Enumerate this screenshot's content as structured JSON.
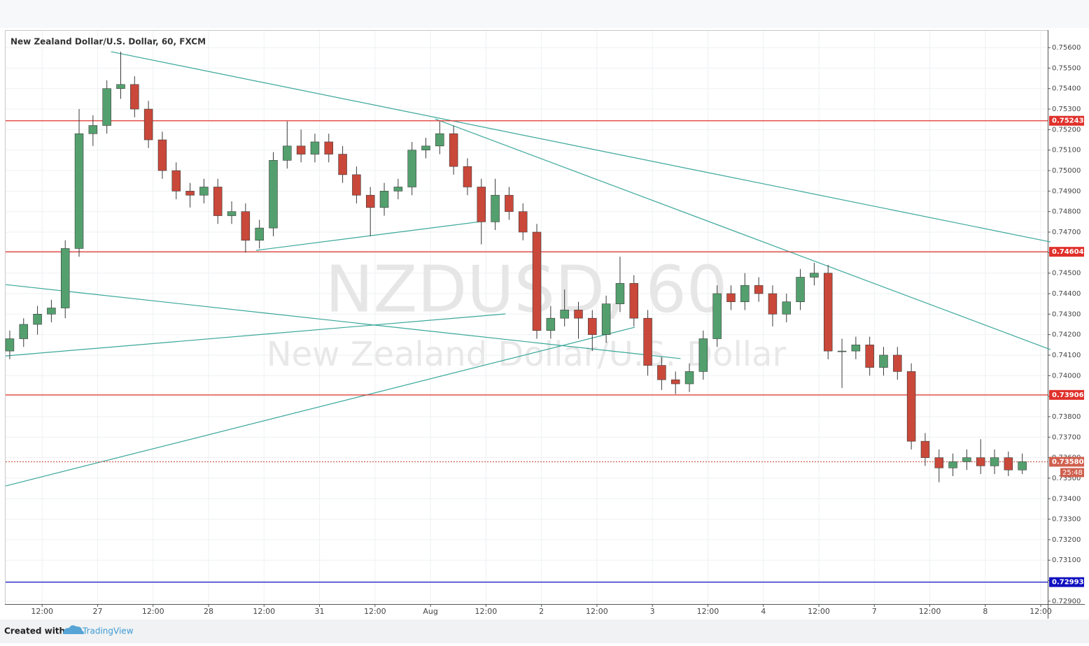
{
  "chart_data": {
    "type": "candlestick",
    "title": "New Zealand Dollar/U.S. Dollar, 60, FXCM",
    "watermark": [
      "NZDUSD, 60",
      "New Zealand Dollar/U.S. Dollar"
    ],
    "up_color": "#53a06e",
    "down_color": "#c9483a",
    "trend_color": "#3aa79a",
    "grid": true,
    "xlim": [
      -7.9,
      217.5
    ],
    "ylim": [
      0.72886,
      0.75682
    ],
    "xticks": [
      {
        "value": 0,
        "label": "12:00"
      },
      {
        "value": 12,
        "label": "27"
      },
      {
        "value": 24,
        "label": "12:00"
      },
      {
        "value": 36,
        "label": "28"
      },
      {
        "value": 48,
        "label": "12:00"
      },
      {
        "value": 60,
        "label": "31"
      },
      {
        "value": 72,
        "label": "12:00"
      },
      {
        "value": 84,
        "label": "Aug"
      },
      {
        "value": 96,
        "label": "12:00"
      },
      {
        "value": 108,
        "label": "2"
      },
      {
        "value": 120,
        "label": "12:00"
      },
      {
        "value": 132,
        "label": "3"
      },
      {
        "value": 144,
        "label": "12:00"
      },
      {
        "value": 156,
        "label": "4"
      },
      {
        "value": 168,
        "label": "12:00"
      },
      {
        "value": 180,
        "label": "7"
      },
      {
        "value": 192,
        "label": "12:00"
      },
      {
        "value": 204,
        "label": "8"
      },
      {
        "value": 216,
        "label": "12:00"
      }
    ],
    "yticks": [
      {
        "value": 0.729,
        "label": "0.72900"
      },
      {
        "value": 0.73,
        "label": "0.73000"
      },
      {
        "value": 0.731,
        "label": "0.73100"
      },
      {
        "value": 0.732,
        "label": "0.73200"
      },
      {
        "value": 0.733,
        "label": "0.73300"
      },
      {
        "value": 0.734,
        "label": "0.73400"
      },
      {
        "value": 0.735,
        "label": "0.73500"
      },
      {
        "value": 0.736,
        "label": "0.73600"
      },
      {
        "value": 0.737,
        "label": "0.73700"
      },
      {
        "value": 0.738,
        "label": "0.73800"
      },
      {
        "value": 0.739,
        "label": "0.73900"
      },
      {
        "value": 0.74,
        "label": "0.74000"
      },
      {
        "value": 0.741,
        "label": "0.74100"
      },
      {
        "value": 0.742,
        "label": "0.74200"
      },
      {
        "value": 0.743,
        "label": "0.74300"
      },
      {
        "value": 0.744,
        "label": "0.74400"
      },
      {
        "value": 0.745,
        "label": "0.74500"
      },
      {
        "value": 0.746,
        "label": "0.74600"
      },
      {
        "value": 0.747,
        "label": "0.74700"
      },
      {
        "value": 0.748,
        "label": "0.74800"
      },
      {
        "value": 0.749,
        "label": "0.74900"
      },
      {
        "value": 0.75,
        "label": "0.75000"
      },
      {
        "value": 0.751,
        "label": "0.75100"
      },
      {
        "value": 0.752,
        "label": "0.75200"
      },
      {
        "value": 0.753,
        "label": "0.75300"
      },
      {
        "value": 0.754,
        "label": "0.75400"
      },
      {
        "value": 0.755,
        "label": "0.75500"
      },
      {
        "value": 0.756,
        "label": "0.75600"
      }
    ],
    "x": [
      -7,
      -4,
      -1,
      2,
      5,
      8,
      11,
      14,
      17,
      20,
      23,
      26,
      29,
      32,
      35,
      38,
      41,
      44,
      47,
      50,
      53,
      56,
      59,
      62,
      65,
      68,
      71,
      74,
      77,
      80,
      83,
      86,
      89,
      92,
      95,
      98,
      101,
      104,
      107,
      110,
      113,
      116,
      119,
      122,
      125,
      128,
      131,
      134,
      137,
      140,
      143,
      146,
      149,
      152,
      155,
      158,
      161,
      164,
      167,
      170,
      173,
      176,
      179,
      182,
      185,
      188,
      191,
      194,
      197,
      200,
      203,
      206,
      209,
      212
    ],
    "candles": [
      [
        0.7412,
        0.7422,
        0.7408,
        0.7418
      ],
      [
        0.7418,
        0.7428,
        0.7414,
        0.7425
      ],
      [
        0.7425,
        0.7434,
        0.742,
        0.743
      ],
      [
        0.743,
        0.7437,
        0.7426,
        0.7433
      ],
      [
        0.7433,
        0.7466,
        0.7428,
        0.7462
      ],
      [
        0.7462,
        0.753,
        0.7458,
        0.7518
      ],
      [
        0.7518,
        0.7527,
        0.7512,
        0.7522
      ],
      [
        0.7522,
        0.7544,
        0.7518,
        0.754
      ],
      [
        0.754,
        0.7558,
        0.7535,
        0.7542
      ],
      [
        0.7542,
        0.7546,
        0.7526,
        0.753
      ],
      [
        0.753,
        0.7534,
        0.7511,
        0.7515
      ],
      [
        0.7515,
        0.7519,
        0.7496,
        0.75
      ],
      [
        0.75,
        0.7504,
        0.7486,
        0.749
      ],
      [
        0.749,
        0.7494,
        0.7482,
        0.7488
      ],
      [
        0.7488,
        0.7496,
        0.7484,
        0.7492
      ],
      [
        0.7492,
        0.7496,
        0.7474,
        0.7478
      ],
      [
        0.7478,
        0.7485,
        0.7474,
        0.748
      ],
      [
        0.748,
        0.7484,
        0.746,
        0.7466
      ],
      [
        0.7466,
        0.7476,
        0.7462,
        0.7472
      ],
      [
        0.7472,
        0.7509,
        0.7468,
        0.7505
      ],
      [
        0.7505,
        0.7524,
        0.7501,
        0.7512
      ],
      [
        0.7512,
        0.752,
        0.7504,
        0.7508
      ],
      [
        0.7508,
        0.7518,
        0.7504,
        0.7514
      ],
      [
        0.7514,
        0.7518,
        0.7504,
        0.7508
      ],
      [
        0.7508,
        0.7512,
        0.7494,
        0.7498
      ],
      [
        0.7498,
        0.7502,
        0.7484,
        0.7488
      ],
      [
        0.7488,
        0.7492,
        0.7468,
        0.7482
      ],
      [
        0.7482,
        0.7494,
        0.7478,
        0.749
      ],
      [
        0.749,
        0.7496,
        0.7486,
        0.7492
      ],
      [
        0.7492,
        0.7514,
        0.7488,
        0.751
      ],
      [
        0.751,
        0.7516,
        0.7506,
        0.7512
      ],
      [
        0.7512,
        0.7524,
        0.7508,
        0.7518
      ],
      [
        0.7518,
        0.7522,
        0.7498,
        0.7502
      ],
      [
        0.7502,
        0.7506,
        0.7488,
        0.7492
      ],
      [
        0.7492,
        0.7496,
        0.7464,
        0.7475
      ],
      [
        0.7475,
        0.7496,
        0.7471,
        0.7488
      ],
      [
        0.7488,
        0.7492,
        0.7476,
        0.748
      ],
      [
        0.748,
        0.7484,
        0.7466,
        0.747
      ],
      [
        0.747,
        0.7474,
        0.7418,
        0.7422
      ],
      [
        0.7422,
        0.7434,
        0.7418,
        0.7428
      ],
      [
        0.7428,
        0.7442,
        0.7424,
        0.7432
      ],
      [
        0.7432,
        0.7436,
        0.7418,
        0.7428
      ],
      [
        0.7428,
        0.7432,
        0.7412,
        0.742
      ],
      [
        0.742,
        0.7439,
        0.7416,
        0.7435
      ],
      [
        0.7435,
        0.7458,
        0.7431,
        0.7445
      ],
      [
        0.7445,
        0.7449,
        0.7424,
        0.7428
      ],
      [
        0.7428,
        0.7432,
        0.74,
        0.7405
      ],
      [
        0.7405,
        0.7409,
        0.7393,
        0.7398
      ],
      [
        0.7398,
        0.7402,
        0.7391,
        0.7396
      ],
      [
        0.7396,
        0.7406,
        0.7392,
        0.7402
      ],
      [
        0.7402,
        0.7422,
        0.7398,
        0.7418
      ],
      [
        0.7418,
        0.7444,
        0.7414,
        0.744
      ],
      [
        0.744,
        0.7444,
        0.7432,
        0.7436
      ],
      [
        0.7436,
        0.745,
        0.7432,
        0.7444
      ],
      [
        0.7444,
        0.7448,
        0.7436,
        0.744
      ],
      [
        0.744,
        0.7444,
        0.7424,
        0.743
      ],
      [
        0.743,
        0.744,
        0.7426,
        0.7436
      ],
      [
        0.7436,
        0.7452,
        0.7432,
        0.7448
      ],
      [
        0.7448,
        0.7455,
        0.7444,
        0.745
      ],
      [
        0.745,
        0.7454,
        0.7408,
        0.7412
      ],
      [
        0.7412,
        0.7418,
        0.7394,
        0.7412
      ],
      [
        0.7412,
        0.7419,
        0.7408,
        0.7415
      ],
      [
        0.7415,
        0.7419,
        0.74,
        0.7404
      ],
      [
        0.7404,
        0.7414,
        0.74,
        0.741
      ],
      [
        0.741,
        0.7414,
        0.7398,
        0.7402
      ],
      [
        0.7402,
        0.7406,
        0.7364,
        0.7368
      ],
      [
        0.7368,
        0.7372,
        0.7356,
        0.736
      ],
      [
        0.736,
        0.7364,
        0.7348,
        0.7355
      ],
      [
        0.7355,
        0.7362,
        0.7351,
        0.7358
      ],
      [
        0.7358,
        0.7364,
        0.7354,
        0.736
      ],
      [
        0.736,
        0.7369,
        0.7352,
        0.7356
      ],
      [
        0.7356,
        0.7364,
        0.7352,
        0.736
      ],
      [
        0.736,
        0.7363,
        0.7351,
        0.7354
      ],
      [
        0.7354,
        0.7362,
        0.7352,
        0.7358
      ]
    ],
    "price_lines": [
      {
        "value": 0.75243,
        "label": "0.75243",
        "color": "#e0302a",
        "style": "solid"
      },
      {
        "value": 0.74604,
        "label": "0.74604",
        "color": "#e0302a",
        "style": "solid"
      },
      {
        "value": 0.73906,
        "label": "0.73906",
        "color": "#e0302a",
        "style": "solid"
      },
      {
        "value": 0.7358,
        "label": "0.73580",
        "color": "#d0604f",
        "style": "dotted",
        "countdown": "25:48"
      },
      {
        "value": 0.72993,
        "label": "0.72993",
        "color": "#1010c0",
        "style": "solid"
      }
    ],
    "trend_lines": [
      [
        [
          14.9,
          0.7558
        ],
        [
          218.1,
          0.74652
        ]
      ],
      [
        [
          85.0,
          0.75252
        ],
        [
          218.1,
          0.74127
        ]
      ],
      [
        [
          -7.9,
          0.74444
        ],
        [
          138.1,
          0.74083
        ]
      ],
      [
        [
          -7.9,
          0.74096
        ],
        [
          100.2,
          0.74301
        ]
      ],
      [
        [
          -7.9,
          0.73462
        ],
        [
          128.2,
          0.74236
        ]
      ],
      [
        [
          46.3,
          0.74611
        ],
        [
          94.8,
          0.74751
        ]
      ]
    ]
  },
  "footer": {
    "created_with": "Created with",
    "brand": "TradingView"
  }
}
